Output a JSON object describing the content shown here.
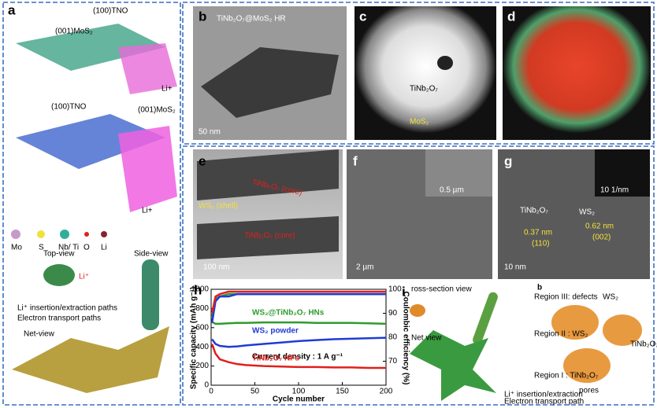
{
  "panels": [
    {
      "label": "a",
      "texts": [
        "(100)TNO",
        "(001)MoS₂",
        "Li+",
        "(100)TNO",
        "(001)MoS₂",
        "Li+",
        "Mo",
        "S",
        "Nb/ Ti",
        "O",
        "Li",
        "Top-view",
        "Side-view",
        "Li⁺",
        "Li⁺ insertion/extraction paths",
        "Electron transport paths",
        "Net-view"
      ]
    },
    {
      "label": "b",
      "texts": [
        "TiNb₂O₇@MoS₂ HR",
        "50 nm"
      ]
    },
    {
      "label": "c",
      "texts": [
        "TiNb₂O₇",
        "MoS₂"
      ]
    },
    {
      "label": "d"
    },
    {
      "label": "e",
      "texts": [
        "TiNb₂O₇ (core)",
        "WS₂ (shell)",
        "TiNb₂O₇ (core)",
        "100 nm"
      ]
    },
    {
      "label": "f",
      "texts": [
        "0.5 µm",
        "2 µm"
      ]
    },
    {
      "label": "g",
      "texts": [
        "TiNb₂O₇",
        "WS₂",
        "0.37 nm",
        "(110)",
        "0.62 nm",
        "(002)",
        "10 1/nm",
        "10 nm"
      ]
    },
    {
      "label": "i",
      "texts": [
        "ross-section view",
        "Net view",
        "b",
        "Region III: defects",
        "WS₂",
        "Region II : WS₂",
        "Region I : TiNb₂O₇",
        "pores",
        "TiNb₂O₇",
        "Li⁺ insertion/extraction",
        "Electron transport path"
      ]
    }
  ],
  "chart_data": {
    "type": "line",
    "label": "h",
    "xlabel": "Cycle number",
    "ylabel": "Specific capacity (mAh g⁻¹)",
    "y2label": "Coulombic efficiency (%)",
    "annotation": "Current density : 1 A g⁻¹",
    "x": [
      1,
      5,
      10,
      20,
      30,
      40,
      60,
      80,
      100,
      120,
      140,
      160,
      180,
      200
    ],
    "xlim": [
      0,
      200
    ],
    "xticks": [
      0,
      50,
      100,
      150,
      200
    ],
    "ylim": [
      0,
      1000
    ],
    "yticks": [
      0,
      200,
      400,
      600,
      800,
      1000
    ],
    "y2lim": [
      60,
      100
    ],
    "y2ticks": [
      70,
      80,
      90,
      100
    ],
    "series": [
      {
        "name": "WS₂@TiNb₂O₇ HNs",
        "color": "#2e9b2e",
        "values": [
          660,
          640,
          640,
          645,
          650,
          650,
          655,
          655,
          655,
          650,
          650,
          650,
          645,
          640
        ]
      },
      {
        "name": "WS₂ powder",
        "color": "#1f3bd6",
        "values": [
          480,
          430,
          410,
          400,
          405,
          415,
          430,
          445,
          460,
          470,
          480,
          485,
          490,
          495
        ]
      },
      {
        "name": "TiNb₂O₇ NFs",
        "color": "#e0201c",
        "values": [
          430,
          330,
          270,
          240,
          220,
          210,
          200,
          195,
          190,
          190,
          185,
          185,
          180,
          180
        ]
      },
      {
        "color": "#2e9b2e",
        "axis": "y2",
        "values": [
          88,
          96,
          97,
          98,
          98,
          98,
          98,
          98,
          98,
          98,
          98,
          98,
          98,
          98
        ]
      },
      {
        "color": "#1f3bd6",
        "axis": "y2",
        "values": [
          86,
          95,
          97,
          97,
          98,
          98,
          98,
          98,
          98,
          98,
          98,
          98,
          98,
          98
        ]
      },
      {
        "color": "#e0201c",
        "axis": "y2",
        "values": [
          90,
          97,
          98,
          99,
          99,
          99,
          99,
          99,
          99,
          99,
          99,
          99,
          99,
          99
        ]
      }
    ]
  }
}
